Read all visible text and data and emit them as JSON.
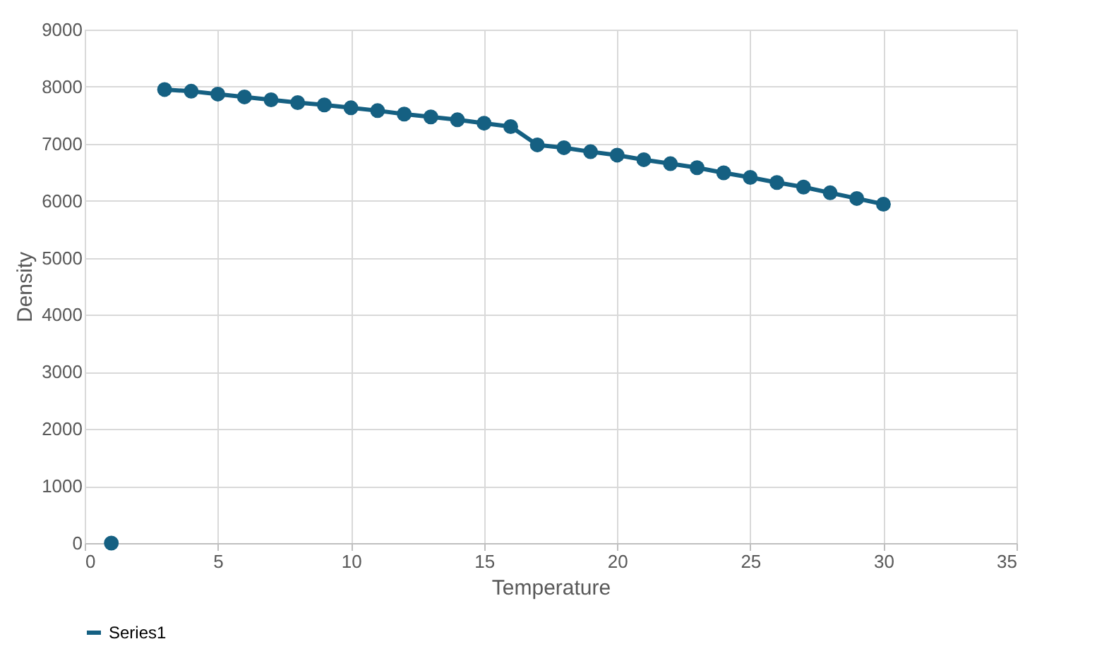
{
  "chart_data": {
    "type": "line",
    "xlabel": "Temperature",
    "ylabel": "Density",
    "x": [
      1,
      2,
      3,
      4,
      5,
      6,
      7,
      8,
      9,
      10,
      11,
      12,
      13,
      14,
      15,
      16,
      17,
      18,
      19,
      20,
      21,
      22,
      23,
      24,
      25,
      26,
      27,
      28,
      29,
      30
    ],
    "series": [
      {
        "name": "Series1",
        "color": "#156082",
        "values": [
          0,
          null,
          7950,
          7920,
          7870,
          7820,
          7770,
          7720,
          7680,
          7630,
          7580,
          7520,
          7470,
          7420,
          7360,
          7300,
          6980,
          6930,
          6860,
          6800,
          6720,
          6650,
          6580,
          6490,
          6410,
          6320,
          6240,
          6140,
          6040,
          5940
        ]
      }
    ],
    "xlim": [
      0,
      35
    ],
    "xticks": [
      0,
      5,
      10,
      15,
      20,
      25,
      30,
      35
    ],
    "ylim": [
      0,
      9000
    ],
    "yticks": [
      0,
      1000,
      2000,
      3000,
      4000,
      5000,
      6000,
      7000,
      8000,
      9000
    ],
    "grid": true,
    "legend": "bottom left",
    "marker": "circle",
    "line_style": "solid"
  }
}
